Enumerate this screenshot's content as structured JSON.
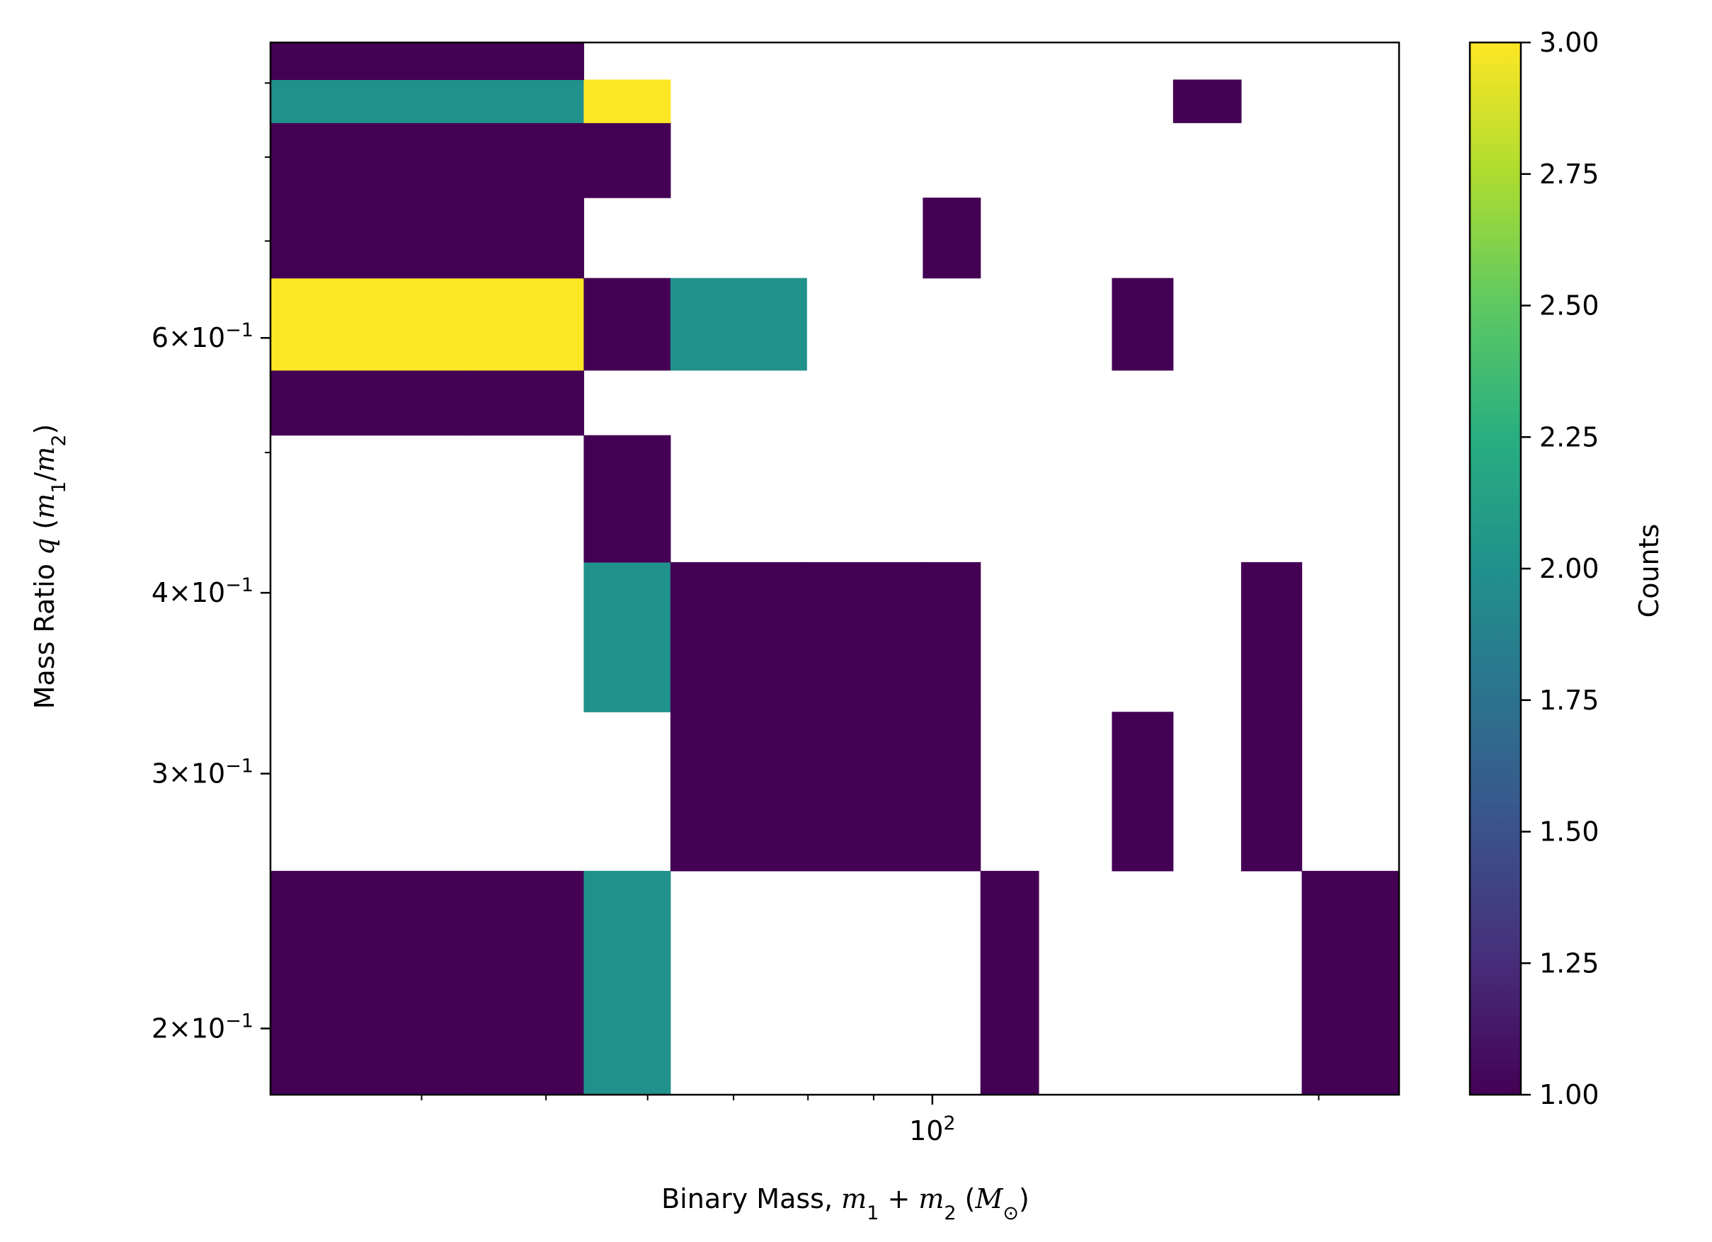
{
  "chart_data": {
    "type": "heatmap",
    "title": "",
    "xlabel": {
      "prefix": "Binary Mass, ",
      "m": "m",
      "sub1": "1",
      "plus": " + ",
      "sub2": "2",
      "unit_open": " (",
      "M": "M",
      "sun": "⊙",
      "unit_close": ")"
    },
    "ylabel": {
      "prefix": "Mass Ratio ",
      "q": "q",
      "open": " (",
      "m": "m",
      "sub1": "1",
      "slash": "/",
      "sub2": "2",
      "close": ")"
    },
    "xscale": "log",
    "yscale": "log",
    "xlim": [
      30.5,
      231
    ],
    "ylim": [
      0.18,
      0.96
    ],
    "x_ticks": [
      {
        "value": 100,
        "base": "10",
        "exp": "2"
      }
    ],
    "y_ticks": [
      {
        "value": 0.2,
        "mant": "2",
        "base": "10",
        "exp": "−1"
      },
      {
        "value": 0.3,
        "mant": "3",
        "base": "10",
        "exp": "−1"
      },
      {
        "value": 0.4,
        "mant": "4",
        "base": "10",
        "exp": "−1"
      },
      {
        "value": 0.6,
        "mant": "6",
        "base": "10",
        "exp": "−1"
      }
    ],
    "times": "×",
    "x_edges": [
      30.5,
      43.2,
      53.5,
      62.5,
      79.8,
      98.3,
      109,
      121,
      138,
      154,
      174,
      194,
      231
    ],
    "y_edges": [
      0.18,
      0.257,
      0.331,
      0.42,
      0.514,
      0.57,
      0.66,
      0.75,
      0.845,
      0.905,
      0.96
    ],
    "cells": [
      {
        "xi": 0,
        "yi": 0,
        "count": 1
      },
      {
        "xi": 1,
        "yi": 0,
        "count": 1
      },
      {
        "xi": 2,
        "yi": 0,
        "count": 2
      },
      {
        "xi": 6,
        "yi": 0,
        "count": 1
      },
      {
        "xi": 11,
        "yi": 0,
        "count": 1
      },
      {
        "xi": 3,
        "yi": 1,
        "count": 1
      },
      {
        "xi": 4,
        "yi": 1,
        "count": 1
      },
      {
        "xi": 5,
        "yi": 1,
        "count": 1
      },
      {
        "xi": 8,
        "yi": 1,
        "count": 1
      },
      {
        "xi": 10,
        "yi": 1,
        "count": 1
      },
      {
        "xi": 2,
        "yi": 2,
        "count": 2
      },
      {
        "xi": 3,
        "yi": 2,
        "count": 1
      },
      {
        "xi": 4,
        "yi": 2,
        "count": 1
      },
      {
        "xi": 5,
        "yi": 2,
        "count": 1
      },
      {
        "xi": 10,
        "yi": 2,
        "count": 1
      },
      {
        "xi": 2,
        "yi": 3,
        "count": 1
      },
      {
        "xi": 0,
        "yi": 4,
        "count": 1
      },
      {
        "xi": 1,
        "yi": 4,
        "count": 1
      },
      {
        "xi": 0,
        "yi": 5,
        "count": 3
      },
      {
        "xi": 1,
        "yi": 5,
        "count": 3
      },
      {
        "xi": 2,
        "yi": 5,
        "count": 1
      },
      {
        "xi": 3,
        "yi": 5,
        "count": 2
      },
      {
        "xi": 8,
        "yi": 5,
        "count": 1
      },
      {
        "xi": 0,
        "yi": 6,
        "count": 1
      },
      {
        "xi": 1,
        "yi": 6,
        "count": 1
      },
      {
        "xi": 5,
        "yi": 6,
        "count": 1
      },
      {
        "xi": 0,
        "yi": 7,
        "count": 1
      },
      {
        "xi": 1,
        "yi": 7,
        "count": 1
      },
      {
        "xi": 2,
        "yi": 7,
        "count": 1
      },
      {
        "xi": 0,
        "yi": 8,
        "count": 2
      },
      {
        "xi": 1,
        "yi": 8,
        "count": 2
      },
      {
        "xi": 2,
        "yi": 8,
        "count": 3
      },
      {
        "xi": 9,
        "yi": 8,
        "count": 1
      },
      {
        "xi": 0,
        "yi": 9,
        "count": 1
      },
      {
        "xi": 1,
        "yi": 9,
        "count": 1
      }
    ],
    "colorbar": {
      "label": "Counts",
      "colormap": "viridis",
      "range": [
        1.0,
        3.0
      ],
      "ticks": [
        "1.00",
        "1.25",
        "1.50",
        "1.75",
        "2.00",
        "2.25",
        "2.50",
        "2.75",
        "3.00"
      ],
      "tick_values": [
        1.0,
        1.25,
        1.5,
        1.75,
        2.0,
        2.25,
        2.5,
        2.75,
        3.0
      ],
      "stops": [
        "#440154",
        "#472d7b",
        "#3b528b",
        "#2c728e",
        "#21918c",
        "#28ae80",
        "#5ec962",
        "#addc30",
        "#fde725"
      ]
    },
    "grid": false,
    "legend": "none"
  }
}
